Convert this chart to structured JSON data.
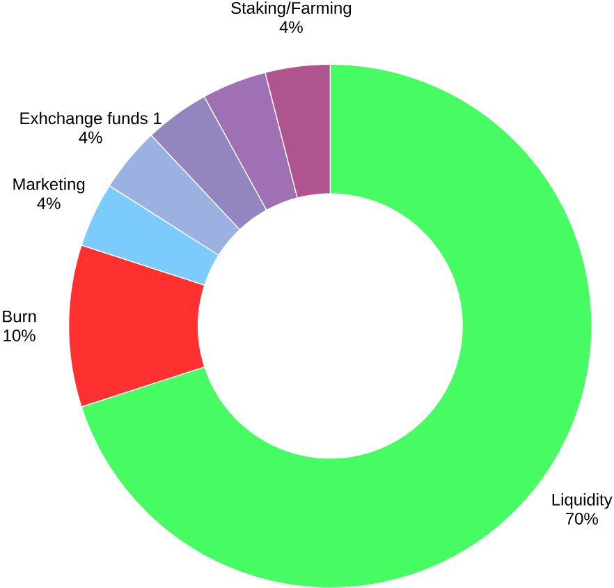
{
  "chart_data": {
    "type": "donut",
    "categories": [
      "Liquidity",
      "Burn",
      "Marketing",
      "Exhchange funds 1",
      null,
      null,
      "Staking/Farming"
    ],
    "values": [
      70,
      10,
      4,
      4,
      4,
      4,
      4
    ],
    "value_labels": [
      "70%",
      "10%",
      "4%",
      "4%",
      null,
      null,
      "4%"
    ],
    "colors": [
      "#47fc62",
      "#fe3030",
      "#7ccbfd",
      "#9bb1e2",
      "#9385c0",
      "#a070b4",
      "#b0548f"
    ]
  }
}
